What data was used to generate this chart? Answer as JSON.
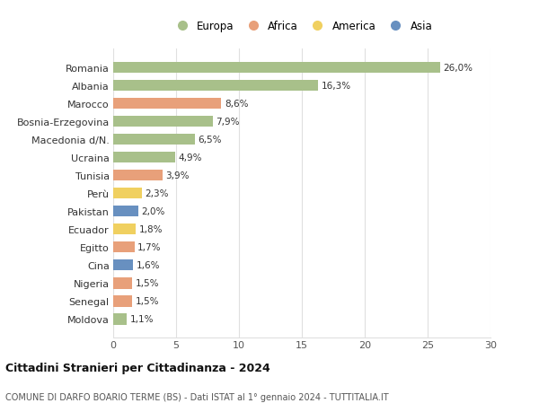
{
  "countries": [
    "Romania",
    "Albania",
    "Marocco",
    "Bosnia-Erzegovina",
    "Macedonia d/N.",
    "Ucraina",
    "Tunisia",
    "Perù",
    "Pakistan",
    "Ecuador",
    "Egitto",
    "Cina",
    "Nigeria",
    "Senegal",
    "Moldova"
  ],
  "values": [
    26.0,
    16.3,
    8.6,
    7.9,
    6.5,
    4.9,
    3.9,
    2.3,
    2.0,
    1.8,
    1.7,
    1.6,
    1.5,
    1.5,
    1.1
  ],
  "labels": [
    "26,0%",
    "16,3%",
    "8,6%",
    "7,9%",
    "6,5%",
    "4,9%",
    "3,9%",
    "2,3%",
    "2,0%",
    "1,8%",
    "1,7%",
    "1,6%",
    "1,5%",
    "1,5%",
    "1,1%"
  ],
  "continents": [
    "Europa",
    "Europa",
    "Africa",
    "Europa",
    "Europa",
    "Europa",
    "Africa",
    "America",
    "Asia",
    "America",
    "Africa",
    "Asia",
    "Africa",
    "Africa",
    "Europa"
  ],
  "continent_colors": {
    "Europa": "#a8c08a",
    "Africa": "#e8a07a",
    "America": "#f0d060",
    "Asia": "#6890c0"
  },
  "legend_order": [
    "Europa",
    "Africa",
    "America",
    "Asia"
  ],
  "title": "Cittadini Stranieri per Cittadinanza - 2024",
  "subtitle": "COMUNE DI DARFO BOARIO TERME (BS) - Dati ISTAT al 1° gennaio 2024 - TUTTITALIA.IT",
  "xlim": [
    0,
    30
  ],
  "xticks": [
    0,
    5,
    10,
    15,
    20,
    25,
    30
  ],
  "background_color": "#ffffff",
  "grid_color": "#e0e0e0"
}
